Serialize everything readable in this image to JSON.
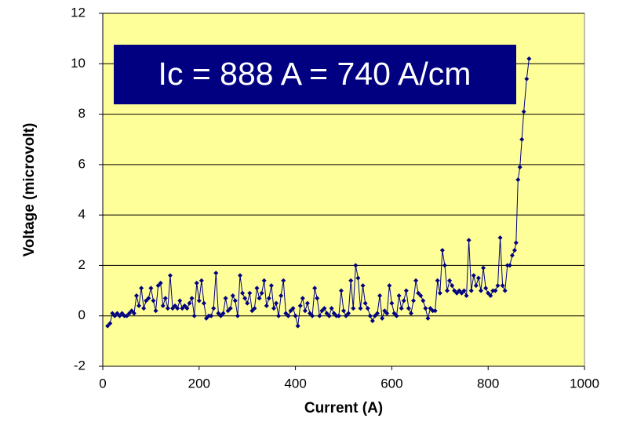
{
  "chart_data": {
    "type": "line",
    "annotation": "Ic = 888 A = 740 A/cm",
    "x_label": "Current (A)",
    "y_label": "Voltage (microvolt)",
    "color": "#000080",
    "plot_background": "#ffff99",
    "grid": true,
    "xlim": [
      0,
      1000
    ],
    "xticks": [
      0,
      200,
      400,
      600,
      800,
      1000
    ],
    "ylim": [
      -2,
      12
    ],
    "yticks": [
      -2,
      0,
      2,
      4,
      6,
      8,
      10,
      12
    ],
    "x": [
      10,
      15,
      20,
      25,
      30,
      35,
      40,
      45,
      50,
      55,
      60,
      65,
      70,
      75,
      80,
      85,
      90,
      95,
      100,
      105,
      110,
      115,
      120,
      125,
      130,
      135,
      140,
      145,
      150,
      155,
      160,
      165,
      170,
      175,
      180,
      185,
      190,
      195,
      200,
      205,
      210,
      215,
      220,
      225,
      230,
      235,
      240,
      245,
      250,
      255,
      260,
      265,
      270,
      275,
      280,
      285,
      290,
      295,
      300,
      305,
      310,
      315,
      320,
      325,
      330,
      335,
      340,
      345,
      350,
      355,
      360,
      365,
      370,
      375,
      380,
      385,
      390,
      395,
      400,
      405,
      410,
      415,
      420,
      425,
      430,
      435,
      440,
      445,
      450,
      455,
      460,
      465,
      470,
      475,
      480,
      485,
      490,
      495,
      500,
      505,
      510,
      515,
      520,
      525,
      530,
      535,
      540,
      545,
      550,
      555,
      560,
      565,
      570,
      575,
      580,
      585,
      590,
      595,
      600,
      605,
      610,
      615,
      620,
      625,
      630,
      635,
      640,
      645,
      650,
      655,
      660,
      665,
      670,
      675,
      680,
      685,
      690,
      695,
      700,
      705,
      710,
      715,
      720,
      725,
      730,
      735,
      740,
      745,
      750,
      755,
      760,
      765,
      770,
      775,
      780,
      785,
      790,
      795,
      800,
      805,
      810,
      815,
      820,
      825,
      830,
      835,
      840,
      845,
      850,
      855,
      858,
      862,
      866,
      870,
      874,
      880,
      885
    ],
    "values": [
      -0.4,
      -0.3,
      0.1,
      0.0,
      0.1,
      0.0,
      0.1,
      0.0,
      0.0,
      0.1,
      0.2,
      0.1,
      0.8,
      0.4,
      1.1,
      0.3,
      0.6,
      0.7,
      1.1,
      0.6,
      0.2,
      1.2,
      1.3,
      0.4,
      0.7,
      0.3,
      1.6,
      0.3,
      0.4,
      0.3,
      0.6,
      0.3,
      0.4,
      0.3,
      0.5,
      0.7,
      0.0,
      1.3,
      0.6,
      1.4,
      0.5,
      -0.1,
      0.0,
      0.0,
      0.3,
      1.7,
      0.1,
      0.0,
      0.1,
      0.7,
      0.2,
      0.3,
      0.8,
      0.6,
      0.0,
      1.6,
      0.9,
      0.7,
      0.5,
      0.9,
      0.2,
      0.3,
      1.1,
      0.7,
      0.9,
      1.4,
      0.4,
      0.7,
      1.2,
      0.3,
      0.5,
      0.0,
      0.8,
      1.4,
      0.1,
      0.0,
      0.2,
      0.3,
      0.0,
      -0.4,
      0.4,
      0.7,
      0.2,
      0.5,
      0.1,
      0.0,
      1.1,
      0.7,
      0.0,
      0.2,
      0.3,
      0.1,
      0.0,
      0.3,
      0.1,
      0.0,
      0.0,
      1.0,
      0.2,
      0.0,
      0.1,
      1.4,
      0.3,
      2.0,
      1.5,
      0.3,
      1.2,
      0.5,
      0.3,
      0.0,
      -0.2,
      0.0,
      0.1,
      0.8,
      -0.1,
      0.2,
      0.1,
      1.2,
      0.5,
      0.1,
      0.0,
      0.8,
      0.3,
      0.6,
      1.0,
      0.3,
      0.1,
      0.6,
      1.4,
      0.9,
      0.8,
      0.6,
      0.3,
      -0.1,
      0.3,
      0.2,
      0.2,
      1.4,
      0.9,
      2.6,
      2.0,
      1.0,
      1.4,
      1.2,
      1.0,
      0.9,
      1.0,
      0.9,
      1.0,
      0.8,
      3.0,
      1.0,
      1.6,
      1.2,
      1.5,
      1.0,
      1.9,
      1.1,
      0.9,
      0.8,
      1.0,
      1.0,
      1.2,
      3.1,
      1.2,
      1.0,
      2.0,
      2.0,
      2.4,
      2.6,
      2.9,
      5.4,
      5.9,
      7.0,
      8.1,
      9.4,
      10.2
    ]
  }
}
